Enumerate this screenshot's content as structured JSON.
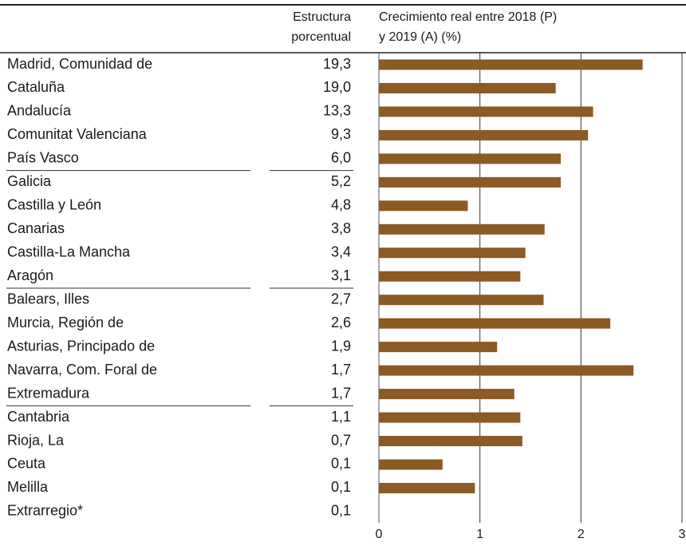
{
  "chart_data": {
    "type": "bar",
    "orientation": "horizontal",
    "column_header": [
      "Estructura",
      "porcentual"
    ],
    "chart_header": [
      "Crecimiento real entre 2018 (P)",
      "y 2019 (A) (%)"
    ],
    "categories": [
      "Madrid, Comunidad de",
      "Cataluña",
      "Andalucía",
      "Comunitat Valenciana",
      "País Vasco",
      "Galicia",
      "Castilla y León",
      "Canarias",
      "Castilla-La Mancha",
      "Aragón",
      "Balears, Illes",
      "Murcia, Región de",
      "Asturias, Principado de",
      "Navarra, Com. Foral de",
      "Extremadura",
      "Cantabria",
      "Rioja, La",
      "Ceuta",
      "Melilla",
      "Extrarregio*"
    ],
    "structure": [
      "19,3",
      "19,0",
      "13,3",
      "9,3",
      "6,0",
      "5,2",
      "4,8",
      "3,8",
      "3,4",
      "3,1",
      "2,7",
      "2,6",
      "1,9",
      "1,7",
      "1,7",
      "1,1",
      "0,7",
      "0,1",
      "0,1",
      "0,1"
    ],
    "values": [
      2.61,
      1.75,
      2.12,
      2.07,
      1.8,
      1.8,
      0.88,
      1.64,
      1.45,
      1.4,
      1.63,
      2.29,
      1.17,
      2.52,
      1.34,
      1.4,
      1.42,
      0.63,
      0.95,
      null
    ],
    "color": "#8c5a24",
    "xlim": [
      0,
      3
    ],
    "xticks": [
      0,
      1,
      2,
      3
    ],
    "grid": true
  }
}
